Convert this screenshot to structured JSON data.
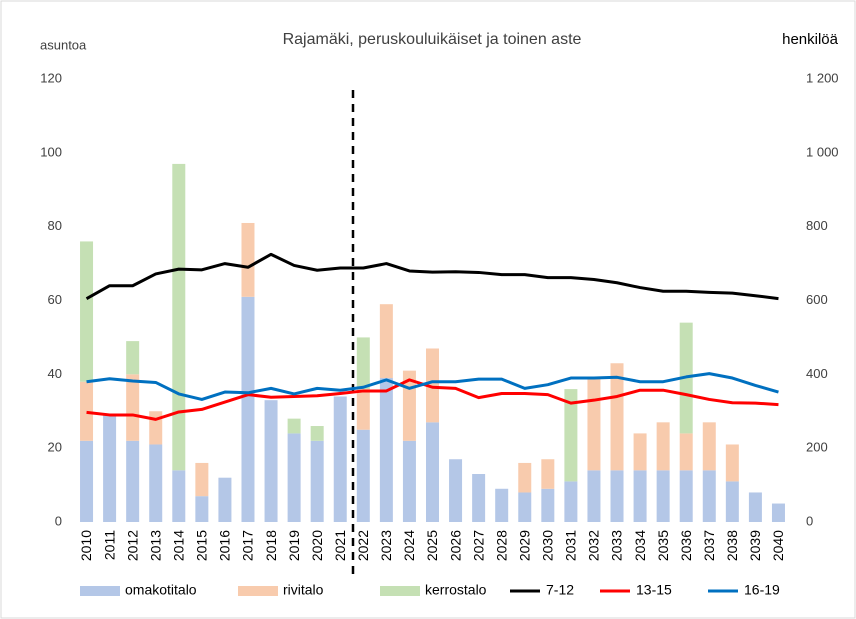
{
  "chart_data": {
    "type": "bar_line",
    "title": "Rajamäki, peruskouluikäiset ja toinen aste",
    "ylabel": "asuntoa",
    "y2label": "henkilöä",
    "categories": [
      "2010",
      "2011",
      "2012",
      "2013",
      "2014",
      "2015",
      "2016",
      "2017",
      "2018",
      "2019",
      "2020",
      "2021",
      "2022",
      "2023",
      "2024",
      "2025",
      "2026",
      "2027",
      "2028",
      "2029",
      "2030",
      "2031",
      "2032",
      "2033",
      "2034",
      "2035",
      "2036",
      "2037",
      "2038",
      "2039",
      "2040"
    ],
    "series": [
      {
        "name": "omakotitalo",
        "color": "#b4c7e7",
        "kind": "bar",
        "values": [
          22,
          29,
          22,
          21,
          14,
          7,
          12,
          61,
          33,
          24,
          22,
          34,
          25,
          39,
          22,
          27,
          17,
          13,
          9,
          8,
          9,
          11,
          14,
          14,
          14,
          14,
          14,
          14,
          11,
          8,
          5
        ]
      },
      {
        "name": "rivitalo",
        "color": "#f8cbad",
        "kind": "bar",
        "values": [
          16,
          0,
          18,
          9,
          0,
          9,
          0,
          20,
          0,
          0,
          0,
          0,
          11,
          20,
          19,
          20,
          0,
          0,
          0,
          8,
          8,
          0,
          25,
          29,
          10,
          13,
          10,
          13,
          10,
          0,
          0
        ]
      },
      {
        "name": "kerrostalo",
        "color": "#c5e0b4",
        "kind": "bar",
        "values": [
          38,
          0,
          9,
          0,
          83,
          0,
          0,
          0,
          0,
          4,
          4,
          0,
          14,
          0,
          0,
          0,
          0,
          0,
          0,
          0,
          0,
          25,
          0,
          0,
          0,
          0,
          30,
          0,
          0,
          0,
          0
        ]
      },
      {
        "name": "7-12",
        "color": "#000000",
        "kind": "line",
        "axis": "y2",
        "values": [
          605,
          640,
          640,
          672,
          685,
          683,
          700,
          690,
          725,
          695,
          682,
          688,
          688,
          700,
          680,
          677,
          678,
          676,
          670,
          670,
          662,
          662,
          657,
          648,
          635,
          625,
          625,
          622,
          620,
          613,
          605
        ]
      },
      {
        "name": "13-15",
        "color": "#ff0000",
        "kind": "line",
        "axis": "y2",
        "values": [
          297,
          290,
          290,
          278,
          298,
          305,
          325,
          345,
          338,
          340,
          342,
          348,
          355,
          355,
          385,
          365,
          362,
          337,
          348,
          348,
          345,
          322,
          330,
          340,
          357,
          357,
          345,
          332,
          323,
          322,
          318
        ]
      },
      {
        "name": "16-19",
        "color": "#0070c0",
        "kind": "line",
        "axis": "y2",
        "values": [
          380,
          388,
          382,
          378,
          347,
          332,
          352,
          350,
          362,
          347,
          362,
          357,
          365,
          385,
          362,
          380,
          380,
          387,
          387,
          362,
          372,
          390,
          390,
          392,
          380,
          380,
          393,
          402,
          390,
          370,
          352
        ]
      }
    ],
    "ylim": [
      0,
      120
    ],
    "yticks": [
      0,
      20,
      40,
      60,
      80,
      100,
      120
    ],
    "y2lim": [
      0,
      1200
    ],
    "y2ticks": [
      0,
      200,
      400,
      600,
      800,
      {
        "value": 1000,
        "label": "1 000"
      },
      {
        "value": 1200,
        "label": "1 200"
      }
    ],
    "grid": false,
    "legend": "bottom"
  }
}
